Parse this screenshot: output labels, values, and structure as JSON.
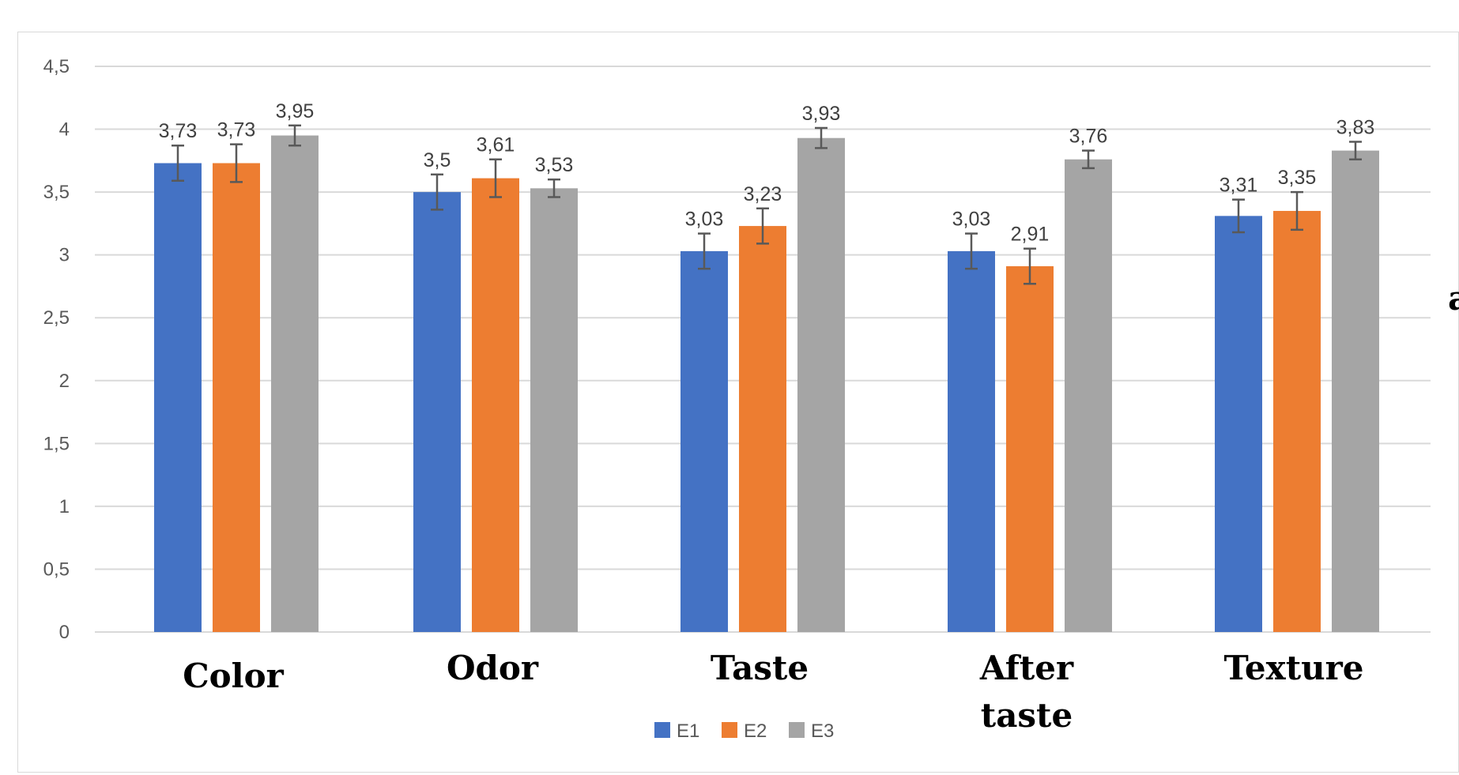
{
  "chart_data": {
    "type": "bar",
    "categories": [
      "Color",
      "Odor",
      "Taste",
      "After taste",
      "Texture"
    ],
    "category_lines": [
      [
        "Color"
      ],
      [
        "Odor"
      ],
      [
        "Taste"
      ],
      [
        "After",
        "taste"
      ],
      [
        "Texture"
      ]
    ],
    "series": [
      {
        "name": "E1",
        "color": "#4472c4",
        "values": [
          3.73,
          3.5,
          3.03,
          3.03,
          3.31
        ],
        "errors": [
          0.14,
          0.14,
          0.14,
          0.14,
          0.13
        ]
      },
      {
        "name": "E2",
        "color": "#ed7d31",
        "values": [
          3.73,
          3.61,
          3.23,
          2.91,
          3.35
        ],
        "errors": [
          0.15,
          0.15,
          0.14,
          0.14,
          0.15
        ]
      },
      {
        "name": "E3",
        "color": "#a5a5a5",
        "values": [
          3.95,
          3.53,
          3.93,
          3.76,
          3.83
        ],
        "errors": [
          0.08,
          0.07,
          0.08,
          0.07,
          0.07
        ]
      }
    ],
    "data_labels": [
      [
        "3,73",
        "3,5",
        "3,03",
        "3,03",
        "3,31"
      ],
      [
        "3,73",
        "3,61",
        "3,23",
        "2,91",
        "3,35"
      ],
      [
        "3,95",
        "3,53",
        "3,93",
        "3,76",
        "3,83"
      ]
    ],
    "yticks": [
      "0",
      "0,5",
      "1",
      "1,5",
      "2",
      "2,5",
      "3",
      "3,5",
      "4",
      "4,5"
    ],
    "ylim": [
      0,
      4.5
    ],
    "grid": true,
    "legend_position": "bottom",
    "title": "",
    "xlabel": "",
    "ylabel": ""
  },
  "stray_text": "a"
}
